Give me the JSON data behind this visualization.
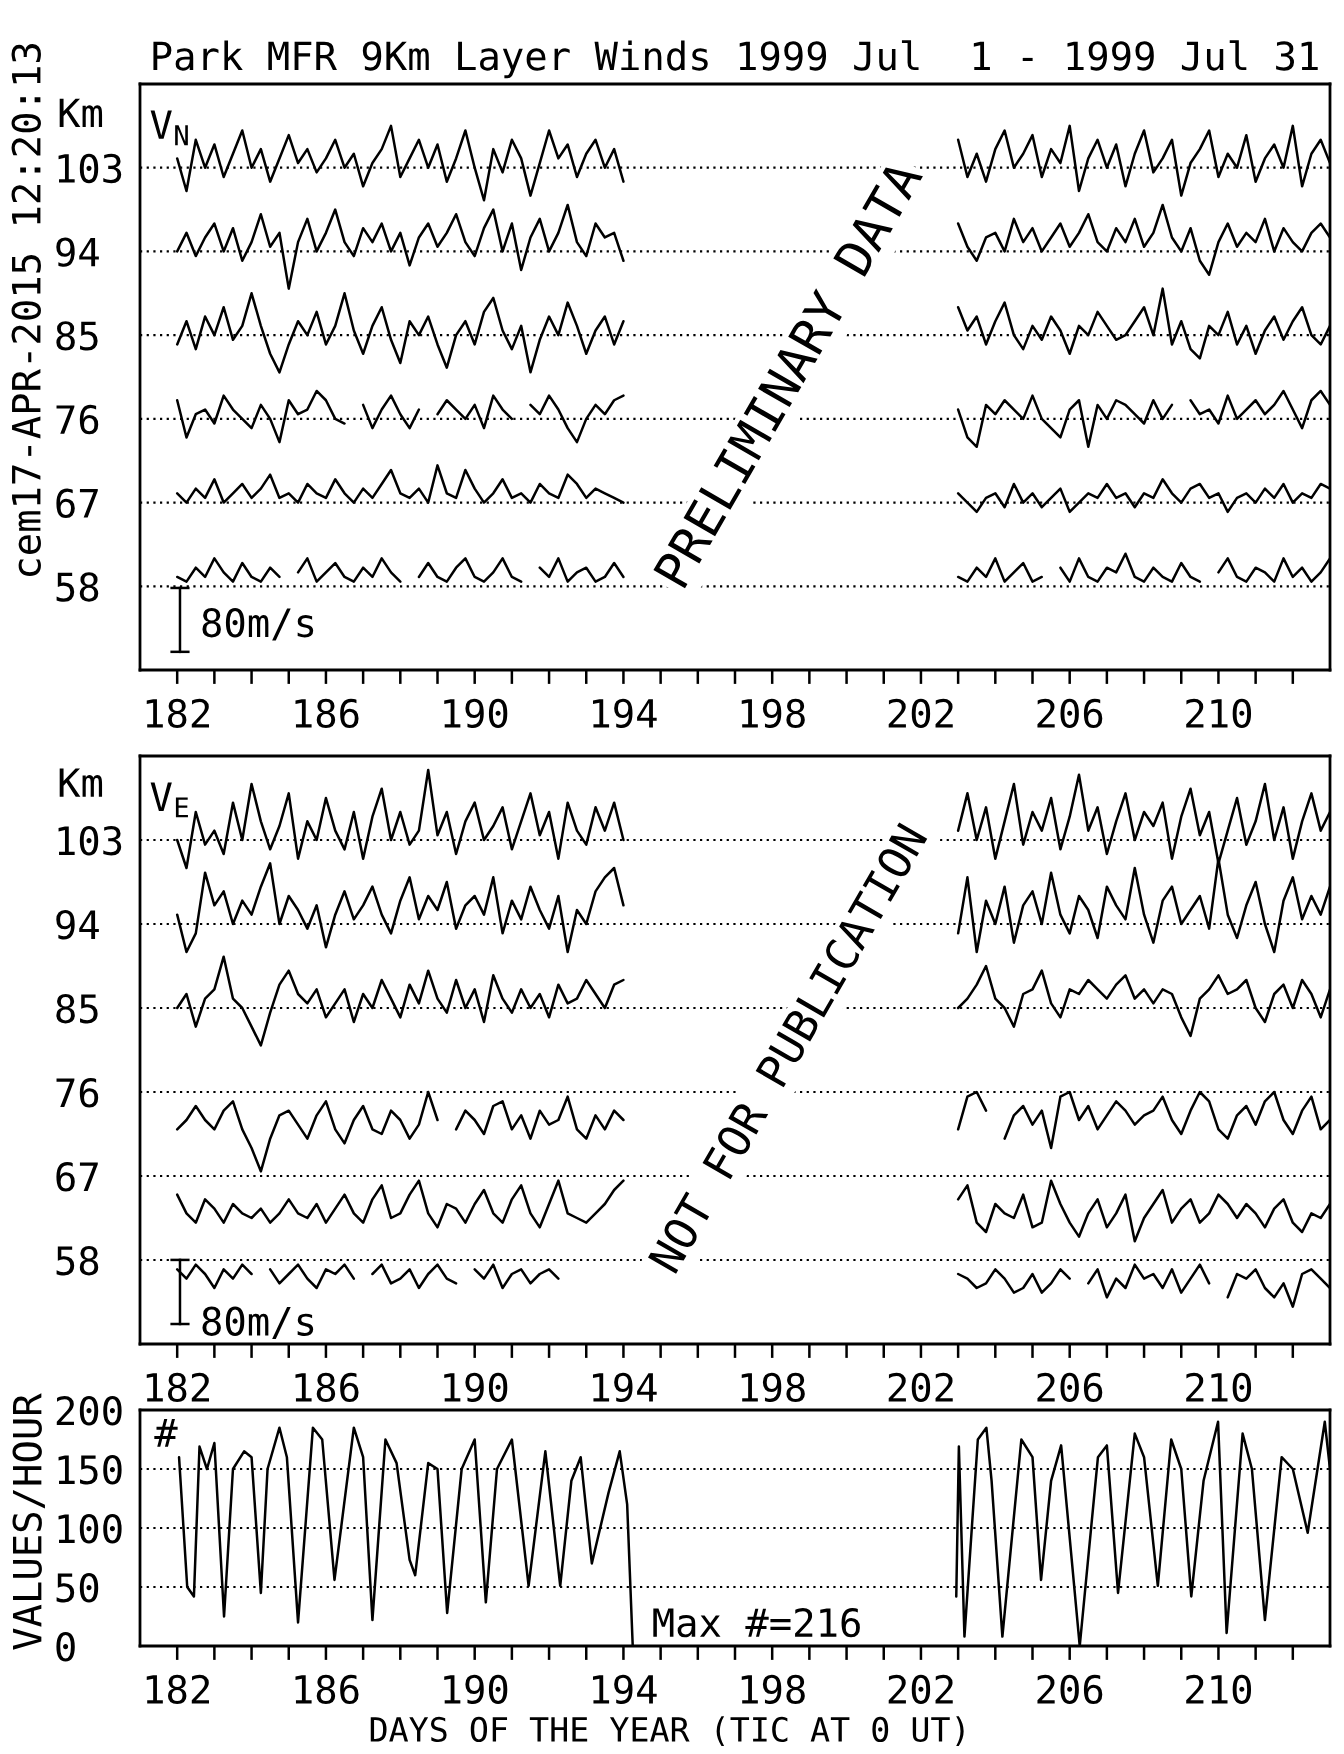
{
  "chart_data": [
    {
      "type": "line",
      "title": "Park MFR 9Km Layer Winds 1999 Jul  1 - 1999 Jul 31",
      "ylabel": "Km",
      "annotations": [
        "cem17-APR-2015 12:20:13",
        "V$_{N}$",
        "80m/s",
        "PRELIMINARY DATA"
      ],
      "x": [
        182,
        182.25,
        182.5,
        182.75,
        183,
        183.25,
        183.5,
        183.75,
        184,
        184.25,
        184.5,
        184.75,
        185,
        185.25,
        185.5,
        185.75,
        186,
        186.25,
        186.5,
        186.75,
        187,
        187.25,
        187.5,
        187.75,
        188,
        188.25,
        188.5,
        188.75,
        189,
        189.25,
        189.5,
        189.75,
        190,
        190.25,
        190.5,
        190.75,
        191,
        191.25,
        191.5,
        191.75,
        192,
        192.25,
        192.5,
        192.75,
        193,
        193.25,
        193.5,
        193.75,
        194,
        198,
        203,
        203.25,
        203.5,
        203.75,
        204,
        204.25,
        204.5,
        204.75,
        205,
        205.25,
        205.5,
        205.75,
        206,
        206.25,
        206.5,
        206.75,
        207,
        207.25,
        207.5,
        207.75,
        208,
        208.25,
        208.5,
        208.75,
        209,
        209.25,
        209.5,
        209.75,
        210,
        210.25,
        210.5,
        210.75,
        211,
        211.25,
        211.5,
        211.75,
        212,
        212.25,
        212.5,
        212.75,
        213
      ],
      "series": [
        {
          "color": "#000000",
          "values": [
            104,
            100.5,
            106,
            103,
            105.5,
            102,
            104.5,
            107,
            103,
            105,
            101.5,
            104,
            106.5,
            103.5,
            105,
            102.5,
            104,
            106,
            103,
            104.5,
            101,
            103.5,
            105,
            107.5,
            102,
            104,
            106,
            103,
            105.5,
            101.5,
            104,
            107,
            103,
            99.5,
            105,
            102.5,
            106,
            104,
            100,
            103.5,
            107,
            104,
            105.5,
            102,
            104.5,
            106,
            103,
            105,
            101.5,
            null,
            106,
            102,
            104.5,
            101.5,
            105,
            107,
            103,
            104.5,
            106.5,
            102,
            105,
            103.5,
            107.5,
            100.5,
            104,
            106,
            103,
            105.5,
            101,
            104.5,
            107,
            102.5,
            104,
            106,
            100,
            103.5,
            105,
            107,
            102,
            104.5,
            103,
            106.5,
            101.5,
            104,
            105.5,
            103,
            107.5,
            101,
            104.5,
            106,
            103.5
          ]
        },
        {
          "color": "#000000",
          "values": [
            94,
            96,
            93.5,
            95.5,
            97,
            94,
            96.5,
            93,
            95,
            98,
            94.5,
            96,
            90,
            95,
            97.5,
            94,
            96,
            98.5,
            95,
            93.5,
            96.5,
            95,
            97,
            94,
            96,
            92.5,
            95.5,
            97,
            94.5,
            96,
            98,
            95,
            93.5,
            96.5,
            98.5,
            94,
            97,
            92,
            95.5,
            97.5,
            94,
            96,
            99,
            95,
            93.5,
            97,
            95.5,
            96,
            93,
            null,
            97,
            94.5,
            93,
            95.5,
            96,
            94,
            97.5,
            95,
            96.5,
            94,
            95.5,
            97,
            94.5,
            96,
            98,
            95,
            94,
            96.5,
            95,
            97.5,
            94.5,
            96,
            99,
            95.5,
            94,
            96.5,
            93,
            91.5,
            95,
            97,
            94.5,
            96,
            95,
            97.5,
            94,
            96.5,
            95,
            94,
            96,
            97,
            95.5
          ]
        },
        {
          "color": "#000000",
          "values": [
            84,
            86.5,
            83.5,
            87,
            85,
            88,
            84.5,
            86,
            89.5,
            86,
            83,
            81,
            84,
            86.5,
            85,
            87.5,
            84,
            86,
            89.5,
            85.5,
            83,
            86,
            88,
            84.5,
            82,
            86.5,
            85,
            87,
            84,
            81.5,
            85,
            86.5,
            84,
            87.5,
            89,
            85.5,
            83.5,
            86,
            81,
            84.5,
            87,
            85,
            88.5,
            86,
            83,
            85.5,
            87,
            84,
            86.5,
            null,
            88,
            85.5,
            87,
            84,
            86.5,
            88.5,
            85,
            83.5,
            86,
            84.5,
            87,
            85.5,
            83,
            86,
            85,
            87.5,
            86,
            84.5,
            85,
            86.5,
            88,
            85,
            90,
            84,
            86.5,
            83.5,
            82.5,
            86,
            85,
            87.5,
            84,
            86,
            83,
            85.5,
            87,
            84.5,
            86.5,
            88,
            85,
            84,
            86
          ]
        },
        {
          "color": "#000000",
          "values": [
            78,
            74,
            76.5,
            77,
            75.5,
            78.5,
            77,
            76,
            75,
            77.5,
            76,
            73.5,
            78,
            76.5,
            77,
            79,
            78,
            76,
            75.5,
            null,
            77.5,
            75,
            77,
            78.5,
            76.5,
            75,
            77,
            null,
            76.5,
            78,
            77,
            76,
            77.5,
            75,
            78.5,
            77,
            76,
            null,
            77.5,
            76.5,
            78.5,
            77,
            75,
            73.5,
            76,
            77.5,
            76.5,
            78,
            78.5,
            null,
            77,
            74,
            73,
            77.5,
            76.5,
            78,
            77,
            76,
            78.5,
            76,
            75,
            74,
            77,
            78,
            73,
            77.5,
            76,
            78,
            77.5,
            76.5,
            75.5,
            78,
            76,
            77.5,
            null,
            78,
            76.5,
            77,
            75.5,
            78.5,
            76,
            77,
            78,
            76.5,
            77.5,
            79,
            77,
            75,
            78,
            79,
            77.5
          ]
        },
        {
          "color": "#000000",
          "values": [
            68,
            67,
            68.5,
            67.5,
            69.5,
            67,
            68,
            69,
            67.5,
            68.5,
            70,
            67.5,
            68,
            67,
            69,
            68,
            67.5,
            69.5,
            68,
            67,
            68.5,
            67.5,
            69,
            70.5,
            68,
            67.5,
            68.5,
            67,
            71,
            68,
            67.5,
            70.5,
            68.5,
            67,
            68,
            69.5,
            67.5,
            68,
            67,
            69,
            68,
            67.5,
            70,
            69,
            67.5,
            68.5,
            68,
            67.5,
            67,
            null,
            68,
            67,
            66,
            67.5,
            68,
            66.5,
            69,
            67,
            68,
            66.5,
            67.5,
            68.5,
            66,
            67,
            68,
            67.5,
            69,
            67.5,
            68,
            66.5,
            68,
            67.5,
            69.5,
            68,
            67,
            68.5,
            69,
            67.5,
            68,
            66,
            67.5,
            68,
            67,
            68.5,
            67.5,
            69,
            67,
            68,
            67.5,
            69,
            68.5
          ]
        },
        {
          "color": "#000000",
          "values": [
            59,
            58.5,
            60,
            59,
            61,
            59.5,
            58.5,
            60.5,
            59,
            58.5,
            60,
            59,
            null,
            59.5,
            61,
            58.5,
            59.5,
            60.5,
            59,
            58.5,
            60,
            59,
            61,
            59.5,
            58.5,
            null,
            59,
            60.5,
            59,
            58.5,
            60,
            61,
            59,
            58.5,
            59.5,
            61,
            59,
            58.5,
            null,
            60,
            59,
            61,
            58.5,
            59.5,
            60,
            58.5,
            59,
            60.5,
            59,
            null,
            59,
            58.5,
            60,
            59,
            61,
            58.5,
            59.5,
            60.5,
            58.5,
            59,
            null,
            60,
            58.5,
            61,
            59,
            58.5,
            60,
            59.5,
            61.5,
            59,
            58.5,
            60,
            59,
            58.5,
            60.5,
            59,
            58.5,
            null,
            59.5,
            61,
            59,
            58.5,
            60,
            59.5,
            58.5,
            61,
            59,
            60,
            58.5,
            59.5,
            61
          ]
        }
      ],
      "xlim": [
        181,
        213
      ],
      "ylim": [
        49,
        112
      ],
      "xticks": [
        182,
        {
          "value": 183,
          "label": null
        },
        {
          "value": 184,
          "label": null
        },
        {
          "value": 185,
          "label": null
        },
        186,
        {
          "value": 187,
          "label": null
        },
        {
          "value": 188,
          "label": null
        },
        {
          "value": 189,
          "label": null
        },
        190,
        {
          "value": 191,
          "label": null
        },
        {
          "value": 192,
          "label": null
        },
        {
          "value": 193,
          "label": null
        },
        194,
        {
          "value": 195,
          "label": null
        },
        {
          "value": 196,
          "label": null
        },
        {
          "value": 197,
          "label": null
        },
        198,
        {
          "value": 199,
          "label": null
        },
        {
          "value": 200,
          "label": null
        },
        {
          "value": 201,
          "label": null
        },
        202,
        {
          "value": 203,
          "label": null
        },
        {
          "value": 204,
          "label": null
        },
        {
          "value": 205,
          "label": null
        },
        206,
        {
          "value": 207,
          "label": null
        },
        {
          "value": 208,
          "label": null
        },
        {
          "value": 209,
          "label": null
        },
        210,
        {
          "value": 211,
          "label": null
        },
        {
          "value": 212,
          "label": null
        }
      ],
      "yticks": [
        58,
        67,
        76,
        85,
        94,
        103
      ],
      "grid": "y"
    },
    {
      "type": "line",
      "ylabel": "Km",
      "annotations": [
        "V$_{E}$",
        "80m/s",
        "NOT FOR PUBLICATION"
      ],
      "x": [
        182,
        182.25,
        182.5,
        182.75,
        183,
        183.25,
        183.5,
        183.75,
        184,
        184.25,
        184.5,
        184.75,
        185,
        185.25,
        185.5,
        185.75,
        186,
        186.25,
        186.5,
        186.75,
        187,
        187.25,
        187.5,
        187.75,
        188,
        188.25,
        188.5,
        188.75,
        189,
        189.25,
        189.5,
        189.75,
        190,
        190.25,
        190.5,
        190.75,
        191,
        191.25,
        191.5,
        191.75,
        192,
        192.25,
        192.5,
        192.75,
        193,
        193.25,
        193.5,
        193.75,
        194,
        198,
        203,
        203.25,
        203.5,
        203.75,
        204,
        204.25,
        204.5,
        204.75,
        205,
        205.25,
        205.5,
        205.75,
        206,
        206.25,
        206.5,
        206.75,
        207,
        207.25,
        207.5,
        207.75,
        208,
        208.25,
        208.5,
        208.75,
        209,
        209.25,
        209.5,
        209.75,
        210,
        210.25,
        210.5,
        210.75,
        211,
        211.25,
        211.5,
        211.75,
        212,
        212.25,
        212.5,
        212.75,
        213
      ],
      "series": [
        {
          "color": "#000000",
          "values": [
            103,
            100,
            106,
            102.5,
            104,
            101.5,
            107,
            103,
            109,
            105,
            102,
            104.5,
            108,
            101,
            105,
            103,
            107.5,
            104,
            102,
            106,
            101,
            105.5,
            108.5,
            103,
            106,
            102.5,
            104,
            110.5,
            103.5,
            106,
            101.5,
            105,
            107,
            103,
            104.5,
            106.5,
            102,
            105,
            108,
            103.5,
            106,
            101,
            107,
            104,
            102.5,
            106.5,
            104,
            107,
            103,
            null,
            104,
            108,
            103,
            106.5,
            101,
            105,
            109,
            102.5,
            106,
            104,
            107.5,
            102,
            105.5,
            110,
            104,
            106.5,
            101.5,
            105,
            108,
            103,
            106,
            104.5,
            107,
            101,
            105.5,
            108.5,
            103.5,
            106,
            100.5,
            104,
            107.5,
            102.5,
            105,
            109,
            103,
            106.5,
            101,
            105,
            108,
            104,
            106
          ]
        },
        {
          "color": "#000000",
          "values": [
            95,
            91,
            93,
            99.5,
            96,
            97.5,
            94,
            96.5,
            95,
            98,
            100.5,
            94,
            97,
            95.5,
            93.5,
            96,
            91.5,
            95,
            97.5,
            94.5,
            96,
            98,
            95,
            93,
            96.5,
            99,
            94.5,
            97,
            95.5,
            98.5,
            93.5,
            96,
            97,
            95,
            99,
            93,
            96.5,
            94.5,
            98,
            95.5,
            93.5,
            97,
            91,
            95.5,
            94,
            97.5,
            99,
            100,
            96,
            null,
            93,
            99,
            91,
            96.5,
            94,
            98,
            92,
            96,
            97.5,
            94,
            99.5,
            95,
            93,
            97,
            95.5,
            92.5,
            98,
            96,
            94.5,
            100,
            95,
            92,
            96.5,
            98,
            94,
            95.5,
            97,
            93.5,
            101,
            95,
            92.5,
            96,
            98.5,
            94,
            91,
            96.5,
            99,
            94.5,
            97,
            95,
            98
          ]
        },
        {
          "color": "#000000",
          "values": [
            85,
            86.5,
            83,
            86,
            87,
            90.5,
            86,
            85,
            83,
            81,
            84.5,
            87.5,
            89,
            86.5,
            85.5,
            87,
            84,
            85.5,
            87,
            83.5,
            86.5,
            85,
            88,
            86,
            84,
            87.5,
            85.5,
            89,
            86,
            84.5,
            88,
            85,
            87,
            83.5,
            88.5,
            86,
            84.5,
            87,
            85,
            86.5,
            84,
            87.5,
            85.5,
            86,
            88,
            86.5,
            85,
            87.5,
            88,
            null,
            85,
            86,
            87.5,
            89.5,
            86,
            85,
            83,
            86.5,
            87,
            89,
            85.5,
            84,
            87,
            86.5,
            88,
            87,
            86,
            87.5,
            88.5,
            86,
            87,
            85.5,
            87,
            86.5,
            84,
            82,
            86,
            87,
            88.5,
            86.5,
            87,
            88,
            85,
            83.5,
            86.5,
            87.5,
            85,
            88,
            86.5,
            84,
            87
          ]
        },
        {
          "color": "#000000",
          "values": [
            72,
            73,
            74.5,
            73,
            72,
            74,
            75,
            72,
            70,
            67.5,
            71,
            73.5,
            74,
            72.5,
            71,
            73.5,
            75,
            72,
            70.5,
            73,
            74.5,
            72,
            71.5,
            74,
            73,
            71,
            72.5,
            76,
            73,
            null,
            72,
            74,
            73,
            71.5,
            74.5,
            75,
            72,
            73.5,
            71,
            74,
            72.5,
            73,
            75.5,
            72,
            71,
            73.5,
            72,
            74,
            73,
            null,
            72,
            75.5,
            76,
            74,
            null,
            71,
            73.5,
            74.5,
            72.5,
            74,
            70,
            75.5,
            76,
            73,
            74.5,
            72,
            73.5,
            75,
            74,
            72.5,
            73.5,
            74,
            75.5,
            73,
            71.5,
            74,
            76,
            75,
            72,
            71,
            73.5,
            74.5,
            72.5,
            75,
            76,
            73,
            71.5,
            74,
            75.5,
            72,
            73
          ]
        },
        {
          "color": "#000000",
          "values": [
            65,
            63,
            62,
            64.5,
            63.5,
            62,
            64,
            63,
            62.5,
            63.5,
            62,
            63,
            64.5,
            63,
            62.5,
            64,
            62,
            63.5,
            65,
            63,
            62,
            64.5,
            66,
            62.5,
            63,
            65,
            66.5,
            63,
            61.5,
            64,
            63.5,
            62,
            64,
            65.5,
            63,
            62,
            64.5,
            66,
            63,
            61.5,
            64,
            66.5,
            63,
            62.5,
            62,
            63,
            64,
            65.5,
            66.5,
            null,
            64.5,
            66,
            62,
            61,
            64,
            63,
            62.5,
            65,
            61.5,
            62,
            66.5,
            64,
            62,
            60.5,
            63,
            64.5,
            61.5,
            63,
            65,
            60,
            62.5,
            64,
            65.5,
            62,
            63.5,
            64.5,
            62,
            63,
            65,
            64,
            62.5,
            64,
            63,
            61.5,
            63.5,
            64.5,
            62,
            61,
            63,
            62.5,
            64
          ]
        },
        {
          "color": "#000000",
          "values": [
            57,
            56,
            57.5,
            56.5,
            55,
            57,
            56,
            57.5,
            56.5,
            null,
            57,
            55.5,
            56.5,
            57.5,
            56,
            55,
            57,
            56.5,
            57.5,
            56,
            null,
            56.5,
            57.5,
            55.5,
            56,
            57,
            55,
            56.5,
            57.5,
            56,
            55.5,
            null,
            57,
            56,
            57.5,
            55,
            56.5,
            57,
            55.5,
            56.5,
            57,
            56,
            null,
            null,
            null,
            null,
            null,
            null,
            null,
            null,
            56.5,
            56,
            55,
            55.5,
            57,
            56,
            54.5,
            55,
            56.5,
            54.5,
            55.5,
            57,
            56,
            null,
            55.5,
            57,
            54,
            56,
            55,
            57.5,
            56,
            56.5,
            55,
            57,
            54.5,
            56,
            57.5,
            55.5,
            null,
            54,
            56.5,
            56,
            57,
            55,
            54,
            55.5,
            53,
            56.5,
            57,
            56,
            55
          ]
        }
      ],
      "xlim": [
        181,
        213
      ],
      "ylim": [
        49,
        112
      ],
      "xticks": [
        182,
        {
          "value": 183,
          "label": null
        },
        {
          "value": 184,
          "label": null
        },
        {
          "value": 185,
          "label": null
        },
        186,
        {
          "value": 187,
          "label": null
        },
        {
          "value": 188,
          "label": null
        },
        {
          "value": 189,
          "label": null
        },
        190,
        {
          "value": 191,
          "label": null
        },
        {
          "value": 192,
          "label": null
        },
        {
          "value": 193,
          "label": null
        },
        194,
        {
          "value": 195,
          "label": null
        },
        {
          "value": 196,
          "label": null
        },
        {
          "value": 197,
          "label": null
        },
        198,
        {
          "value": 199,
          "label": null
        },
        {
          "value": 200,
          "label": null
        },
        {
          "value": 201,
          "label": null
        },
        202,
        {
          "value": 203,
          "label": null
        },
        {
          "value": 204,
          "label": null
        },
        {
          "value": 205,
          "label": null
        },
        206,
        {
          "value": 207,
          "label": null
        },
        {
          "value": 208,
          "label": null
        },
        {
          "value": 209,
          "label": null
        },
        210,
        {
          "value": 211,
          "label": null
        },
        {
          "value": 212,
          "label": null
        }
      ],
      "yticks": [
        58,
        67,
        76,
        85,
        94,
        103
      ],
      "grid": "y"
    },
    {
      "type": "line",
      "xlabel": "DAYS OF THE YEAR (TIC AT 0 UT)",
      "ylabel": "VALUES/HOUR",
      "annotations": [
        "#",
        "Max #=216"
      ],
      "x": [
        182.05,
        182.27,
        182.45,
        182.6,
        182.8,
        183.0,
        183.26,
        183.5,
        183.8,
        184.0,
        184.25,
        184.43,
        184.75,
        184.95,
        185.25,
        185.65,
        185.9,
        186.23,
        186.75,
        187.0,
        187.25,
        187.6,
        187.9,
        188.25,
        188.4,
        188.75,
        189.0,
        189.26,
        189.65,
        190.0,
        190.3,
        190.6,
        191.0,
        191.45,
        191.9,
        192.3,
        192.6,
        192.85,
        193.15,
        193.3,
        193.6,
        193.9,
        194.1,
        194.25,
        198,
        202.95,
        203.02,
        203.17,
        203.53,
        203.76,
        203.9,
        204.19,
        204.7,
        205.0,
        205.23,
        205.5,
        205.77,
        206.27,
        206.76,
        207.0,
        207.3,
        207.75,
        208.0,
        208.37,
        208.73,
        209.0,
        209.27,
        209.6,
        209.99,
        210.22,
        210.65,
        210.9,
        211.25,
        211.7,
        212.0,
        212.4,
        212.86,
        213.0
      ],
      "series": [
        {
          "color": "#000000",
          "values": [
            160,
            50,
            42,
            169,
            150,
            172,
            25,
            150,
            165,
            160,
            45,
            150,
            185,
            160,
            20,
            185,
            175,
            56,
            185,
            160,
            22,
            175,
            155,
            73,
            60,
            155,
            150,
            28,
            150,
            175,
            37,
            150,
            175,
            51,
            165,
            51,
            140,
            160,
            70,
            90,
            130,
            165,
            120,
            0,
            null,
            42,
            169,
            8,
            175,
            185,
            140,
            8,
            175,
            160,
            56,
            140,
            170,
            0,
            160,
            170,
            45,
            180,
            160,
            51,
            175,
            150,
            42,
            140,
            190,
            11,
            180,
            150,
            22,
            160,
            150,
            96,
            190,
            150
          ]
        }
      ],
      "xlim": [
        181,
        213
      ],
      "ylim": [
        0,
        200
      ],
      "xticks": [
        182,
        {
          "value": 183,
          "label": null
        },
        {
          "value": 184,
          "label": null
        },
        {
          "value": 185,
          "label": null
        },
        186,
        {
          "value": 187,
          "label": null
        },
        {
          "value": 188,
          "label": null
        },
        {
          "value": 189,
          "label": null
        },
        190,
        {
          "value": 191,
          "label": null
        },
        {
          "value": 192,
          "label": null
        },
        {
          "value": 193,
          "label": null
        },
        194,
        {
          "value": 195,
          "label": null
        },
        {
          "value": 196,
          "label": null
        },
        {
          "value": 197,
          "label": null
        },
        198,
        {
          "value": 199,
          "label": null
        },
        {
          "value": 200,
          "label": null
        },
        {
          "value": 201,
          "label": null
        },
        202,
        {
          "value": 203,
          "label": null
        },
        {
          "value": 204,
          "label": null
        },
        {
          "value": 205,
          "label": null
        },
        206,
        {
          "value": 207,
          "label": null
        },
        {
          "value": 208,
          "label": null
        },
        {
          "value": 209,
          "label": null
        },
        210,
        {
          "value": 211,
          "label": null
        },
        {
          "value": 212,
          "label": null
        }
      ],
      "yticks": [
        0,
        50,
        100,
        150,
        200
      ],
      "grid": "y"
    }
  ]
}
